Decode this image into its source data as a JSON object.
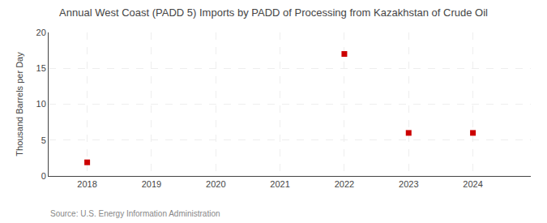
{
  "chart_data": {
    "type": "scatter",
    "title": "Annual West Coast (PADD 5) Imports by PADD of Processing from Kazakhstan of Crude Oil",
    "ylabel": "Thousand Barrels per Day",
    "annotation": "Source: U.S. Energy Information Administration",
    "x": [
      2018,
      2022,
      2023,
      2024
    ],
    "values": [
      1.9,
      17.0,
      6.0,
      6.0
    ],
    "color": "#cc0000",
    "marker": "square",
    "xlim": [
      2017.4,
      2024.9
    ],
    "ylim": [
      0,
      20
    ],
    "xticks": [
      2018,
      2019,
      2020,
      2021,
      2022,
      2023,
      2024
    ],
    "yticks": [
      0,
      5,
      10,
      15,
      20
    ],
    "grid": true
  }
}
